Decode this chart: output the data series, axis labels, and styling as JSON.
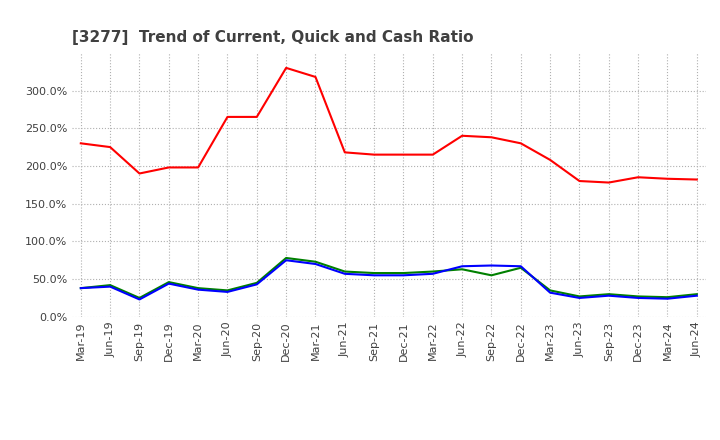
{
  "title": "[3277]  Trend of Current, Quick and Cash Ratio",
  "x_labels": [
    "Mar-19",
    "Jun-19",
    "Sep-19",
    "Dec-19",
    "Mar-20",
    "Jun-20",
    "Sep-20",
    "Dec-20",
    "Mar-21",
    "Jun-21",
    "Sep-21",
    "Dec-21",
    "Mar-22",
    "Jun-22",
    "Sep-22",
    "Dec-22",
    "Mar-23",
    "Jun-23",
    "Sep-23",
    "Dec-23",
    "Mar-24",
    "Jun-24"
  ],
  "current_ratio": [
    230,
    225,
    190,
    198,
    198,
    265,
    265,
    330,
    318,
    218,
    215,
    215,
    215,
    240,
    238,
    230,
    208,
    180,
    178,
    185,
    183,
    182
  ],
  "quick_ratio": [
    38,
    42,
    25,
    46,
    38,
    35,
    45,
    78,
    73,
    60,
    58,
    58,
    60,
    63,
    55,
    65,
    35,
    27,
    30,
    27,
    26,
    30
  ],
  "cash_ratio": [
    38,
    40,
    23,
    44,
    36,
    33,
    43,
    75,
    70,
    57,
    55,
    55,
    57,
    67,
    68,
    67,
    32,
    25,
    28,
    25,
    24,
    28
  ],
  "current_color": "#ff0000",
  "quick_color": "#008000",
  "cash_color": "#0000ff",
  "ylim": [
    0,
    350
  ],
  "yticks": [
    0,
    50,
    100,
    150,
    200,
    250,
    300
  ],
  "background_color": "#ffffff",
  "grid_color": "#b0b0b0",
  "title_color": "#404040",
  "title_fontsize": 11,
  "tick_fontsize": 8,
  "legend_fontsize": 9
}
